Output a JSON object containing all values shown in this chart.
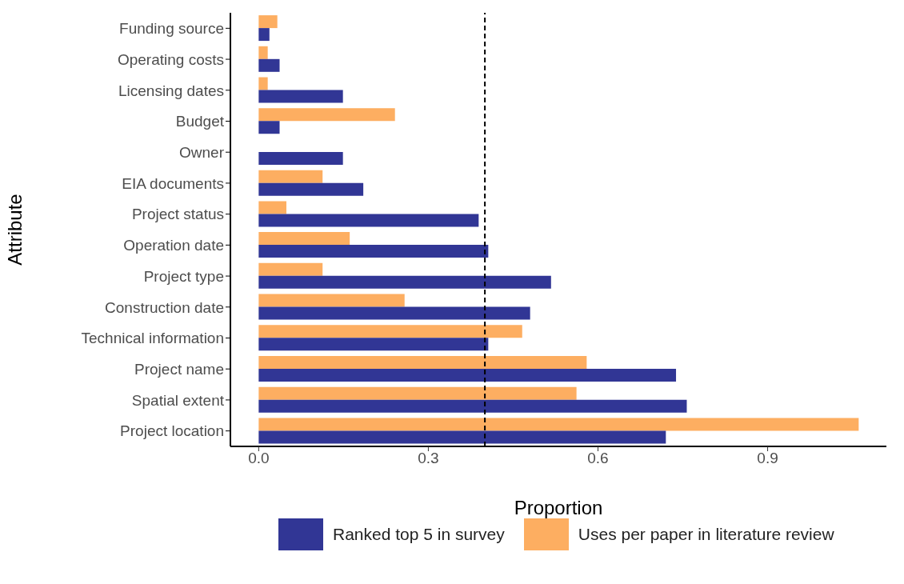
{
  "chart_data": {
    "type": "bar",
    "orientation": "horizontal",
    "xlabel": "Proportion",
    "ylabel": "Attribute",
    "categories": [
      "Funding source",
      "Operating costs",
      "Licensing dates",
      "Budget",
      "Owner",
      "EIA documents",
      "Project status",
      "Operation date",
      "Project type",
      "Construction date",
      "Technical information",
      "Project name",
      "Spatial extent",
      "Project location"
    ],
    "series": [
      {
        "name": "Ranked top 5 in survey",
        "color": "#313695",
        "values": [
          0.019,
          0.037,
          0.149,
          0.037,
          0.149,
          0.185,
          0.389,
          0.406,
          0.517,
          0.48,
          0.406,
          0.738,
          0.757,
          0.72
        ]
      },
      {
        "name": "Uses per paper in literature review",
        "color": "#fdae61",
        "values": [
          0.033,
          0.016,
          0.016,
          0.241,
          null,
          0.113,
          0.049,
          0.161,
          0.113,
          0.258,
          0.466,
          0.58,
          0.562,
          1.061
        ]
      }
    ],
    "xlim": [
      -0.05,
      1.11
    ],
    "xticks": [
      {
        "value": 0,
        "label": "0.0"
      },
      0.3,
      0.6,
      0.9
    ],
    "ref_lines": [
      {
        "axis": "x",
        "value": 0.4,
        "line_style": "dashed",
        "color": "#000000"
      }
    ],
    "grid": false,
    "legend": "bottom"
  }
}
